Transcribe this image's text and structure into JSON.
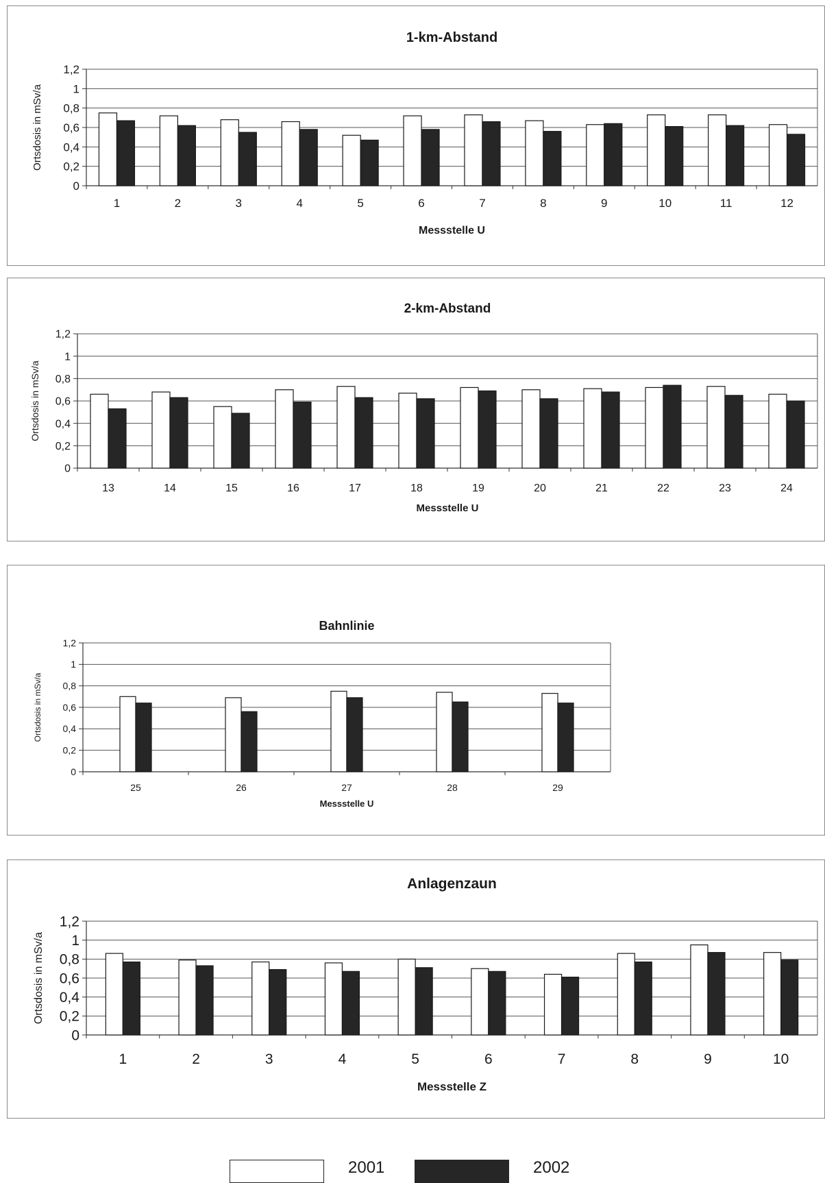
{
  "colors": {
    "series_2001": "#ffffff",
    "series_2002": "#262626",
    "axis": "#333333",
    "grid": "#555555"
  },
  "legend": {
    "label_2001": "2001",
    "label_2002": "2002"
  },
  "chart_data": [
    {
      "type": "bar",
      "title": "1-km-Abstand",
      "xlabel": "Messstelle U",
      "ylabel": "Ortsdosis in mSv/a",
      "ylim": [
        0,
        1.2
      ],
      "yticks": [
        "0",
        "0,2",
        "0,4",
        "0,6",
        "0,8",
        "1",
        "1,2"
      ],
      "grid": true,
      "categories": [
        "1",
        "2",
        "3",
        "4",
        "5",
        "6",
        "7",
        "8",
        "9",
        "10",
        "11",
        "12"
      ],
      "series": [
        {
          "name": "2001",
          "values": [
            0.75,
            0.72,
            0.68,
            0.66,
            0.52,
            0.72,
            0.73,
            0.67,
            0.63,
            0.73,
            0.73,
            0.63
          ]
        },
        {
          "name": "2002",
          "values": [
            0.67,
            0.62,
            0.55,
            0.58,
            0.47,
            0.58,
            0.66,
            0.56,
            0.64,
            0.61,
            0.62,
            0.53
          ]
        }
      ]
    },
    {
      "type": "bar",
      "title": "2-km-Abstand",
      "xlabel": "Messstelle U",
      "ylabel": "Ortsdosis in mSv/a",
      "ylim": [
        0,
        1.2
      ],
      "yticks": [
        "0",
        "0,2",
        "0,4",
        "0,6",
        "0,8",
        "1",
        "1,2"
      ],
      "grid": true,
      "categories": [
        "13",
        "14",
        "15",
        "16",
        "17",
        "18",
        "19",
        "20",
        "21",
        "22",
        "23",
        "24"
      ],
      "series": [
        {
          "name": "2001",
          "values": [
            0.66,
            0.68,
            0.55,
            0.7,
            0.73,
            0.67,
            0.72,
            0.7,
            0.71,
            0.72,
            0.73,
            0.66
          ]
        },
        {
          "name": "2002",
          "values": [
            0.53,
            0.63,
            0.49,
            0.59,
            0.63,
            0.62,
            0.69,
            0.62,
            0.68,
            0.74,
            0.65,
            0.6
          ]
        }
      ]
    },
    {
      "type": "bar",
      "title": "Bahnlinie",
      "xlabel": "Messstelle U",
      "ylabel": "Ortsdosis in mSv/a",
      "ylim": [
        0,
        1.2
      ],
      "yticks": [
        "0",
        "0,2",
        "0,4",
        "0,6",
        "0,8",
        "1",
        "1,2"
      ],
      "grid": true,
      "categories": [
        "25",
        "26",
        "27",
        "28",
        "29"
      ],
      "series": [
        {
          "name": "2001",
          "values": [
            0.7,
            0.69,
            0.75,
            0.74,
            0.73
          ]
        },
        {
          "name": "2002",
          "values": [
            0.64,
            0.56,
            0.69,
            0.65,
            0.64
          ]
        }
      ]
    },
    {
      "type": "bar",
      "title": "Anlagenzaun",
      "xlabel": "Messstelle Z",
      "ylabel": "Ortsdosis in mSv/a",
      "ylim": [
        0,
        1.2
      ],
      "yticks": [
        "0",
        "0,2",
        "0,4",
        "0,6",
        "0,8",
        "1",
        "1,2"
      ],
      "grid": true,
      "categories": [
        "1",
        "2",
        "3",
        "4",
        "5",
        "6",
        "7",
        "8",
        "9",
        "10"
      ],
      "series": [
        {
          "name": "2001",
          "values": [
            0.86,
            0.79,
            0.77,
            0.76,
            0.8,
            0.7,
            0.64,
            0.86,
            0.95,
            0.87
          ]
        },
        {
          "name": "2002",
          "values": [
            0.77,
            0.73,
            0.69,
            0.67,
            0.71,
            0.67,
            0.61,
            0.77,
            0.87,
            0.79
          ]
        }
      ]
    }
  ]
}
